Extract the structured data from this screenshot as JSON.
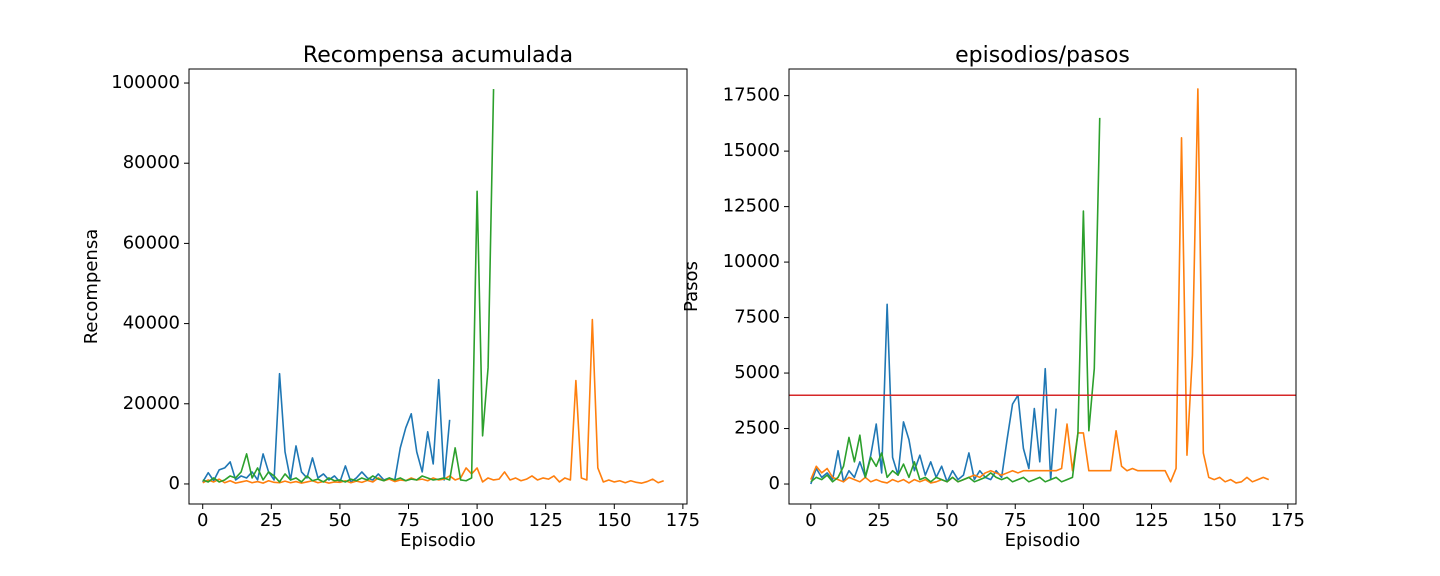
{
  "chart_data": [
    {
      "type": "line",
      "title": "Recompensa acumulada",
      "x_label": "Episodio",
      "y_label": "Recompensa",
      "x": [
        0,
        2,
        4,
        6,
        8,
        10,
        12,
        14,
        16,
        18,
        20,
        22,
        24,
        26,
        28,
        30,
        32,
        34,
        36,
        38,
        40,
        42,
        44,
        46,
        48,
        50,
        52,
        54,
        56,
        58,
        60,
        62,
        64,
        66,
        68,
        70,
        72,
        74,
        76,
        78,
        80,
        82,
        84,
        86,
        88,
        90,
        92,
        94,
        96,
        98,
        100,
        102,
        104,
        106,
        108,
        110,
        112,
        114,
        116,
        118,
        120,
        122,
        124,
        126,
        128,
        130,
        132,
        134,
        136,
        138,
        140,
        142,
        144,
        146,
        148,
        150,
        152,
        154,
        156,
        158,
        160,
        162,
        164,
        166,
        168
      ],
      "series": [
        {
          "color": "#1f77b4",
          "values": [
            500,
            2800,
            800,
            3500,
            4000,
            5500,
            1000,
            2000,
            1500,
            3000,
            1000,
            7500,
            3000,
            1000,
            27500,
            8000,
            1000,
            9500,
            3000,
            1500,
            6500,
            1500,
            2500,
            1000,
            2000,
            500,
            4500,
            500,
            1500,
            3000,
            1500,
            1000,
            2500,
            1000,
            1500,
            1000,
            9000,
            14000,
            17500,
            8000,
            3000,
            13000,
            5000,
            26000,
            1000,
            16000,
            null,
            null,
            null,
            null,
            null,
            null,
            null,
            null,
            null,
            null,
            null,
            null,
            null,
            null,
            null,
            null,
            null,
            null,
            null,
            null,
            null,
            null,
            null,
            null,
            null,
            null,
            null,
            null,
            null,
            null,
            null,
            null,
            null,
            null,
            null,
            null,
            null,
            null,
            null
          ]
        },
        {
          "color": "#ff7f0e",
          "values": [
            300,
            1000,
            500,
            1200,
            300,
            800,
            200,
            500,
            800,
            300,
            600,
            200,
            800,
            400,
            300,
            700,
            300,
            600,
            200,
            500,
            800,
            300,
            600,
            200,
            500,
            400,
            800,
            300,
            700,
            400,
            900,
            500,
            1500,
            800,
            1200,
            600,
            1000,
            800,
            1500,
            1000,
            1200,
            800,
            1500,
            1000,
            1200,
            2000,
            1000,
            1500,
            4000,
            2500,
            4000,
            500,
            1500,
            1000,
            1200,
            3000,
            1000,
            1500,
            800,
            1200,
            2000,
            1000,
            1500,
            1200,
            2000,
            500,
            1500,
            1000,
            25800,
            1500,
            1000,
            41000,
            4000,
            500,
            1000,
            500,
            800,
            300,
            800,
            400,
            200,
            600,
            1200,
            300,
            800
          ]
        },
        {
          "color": "#2ca02c",
          "values": [
            1000,
            500,
            1500,
            500,
            1000,
            2000,
            1500,
            3000,
            7500,
            1500,
            4000,
            1000,
            3000,
            2000,
            500,
            2500,
            1000,
            1500,
            500,
            2000,
            800,
            1200,
            500,
            1500,
            800,
            1000,
            500,
            1200,
            800,
            1500,
            1000,
            2000,
            1200,
            800,
            1500,
            1000,
            1500,
            800,
            1200,
            1000,
            2000,
            1500,
            1000,
            1200,
            1500,
            1000,
            9000,
            1000,
            800,
            1500,
            73000,
            12000,
            29000,
            98500,
            null,
            null,
            null,
            null,
            null,
            null,
            null,
            null,
            null,
            null,
            null,
            null,
            null,
            null,
            null,
            null,
            null,
            null,
            null,
            null,
            null,
            null,
            null,
            null,
            null,
            null,
            null,
            null,
            null,
            null,
            null
          ]
        }
      ],
      "xlim": [
        -5,
        176.5
      ],
      "ylim": [
        -5000,
        103500
      ],
      "xticks": [
        0,
        25,
        50,
        75,
        100,
        125,
        150,
        175
      ],
      "yticks": [
        0,
        20000,
        40000,
        60000,
        80000,
        100000
      ]
    },
    {
      "type": "line",
      "title": "episodios/pasos",
      "x_label": "Episodio",
      "y_label": "Pasos",
      "x": [
        0,
        2,
        4,
        6,
        8,
        10,
        12,
        14,
        16,
        18,
        20,
        22,
        24,
        26,
        28,
        30,
        32,
        34,
        36,
        38,
        40,
        42,
        44,
        46,
        48,
        50,
        52,
        54,
        56,
        58,
        60,
        62,
        64,
        66,
        68,
        70,
        72,
        74,
        76,
        78,
        80,
        82,
        84,
        86,
        88,
        90,
        92,
        94,
        96,
        98,
        100,
        102,
        104,
        106,
        108,
        110,
        112,
        114,
        116,
        118,
        120,
        122,
        124,
        126,
        128,
        130,
        132,
        134,
        136,
        138,
        140,
        142,
        144,
        146,
        148,
        150,
        152,
        154,
        156,
        158,
        160,
        162,
        164,
        166,
        168
      ],
      "series": [
        {
          "color": "#1f77b4",
          "values": [
            0,
            700,
            300,
            500,
            200,
            1500,
            100,
            600,
            300,
            1000,
            300,
            1300,
            2700,
            500,
            8100,
            1200,
            400,
            2800,
            2000,
            600,
            1300,
            400,
            1000,
            300,
            800,
            100,
            600,
            200,
            400,
            1400,
            200,
            600,
            300,
            200,
            600,
            300,
            2000,
            3600,
            4000,
            1600,
            700,
            3400,
            1000,
            5200,
            200,
            3400,
            null,
            null,
            null,
            null,
            null,
            null,
            null,
            null,
            null,
            null,
            null,
            null,
            null,
            null,
            null,
            null,
            null,
            null,
            null,
            null,
            null,
            null,
            null,
            null,
            null,
            null,
            null,
            null,
            null,
            null,
            null,
            null,
            null,
            null,
            null,
            null,
            null,
            null,
            null
          ]
        },
        {
          "color": "#ff7f0e",
          "values": [
            200,
            800,
            500,
            700,
            300,
            200,
            100,
            300,
            200,
            100,
            300,
            100,
            200,
            100,
            50,
            200,
            100,
            200,
            50,
            200,
            100,
            200,
            50,
            100,
            200,
            100,
            300,
            100,
            200,
            300,
            400,
            300,
            500,
            600,
            500,
            400,
            500,
            600,
            500,
            600,
            600,
            600,
            600,
            600,
            600,
            600,
            700,
            2700,
            600,
            2300,
            2300,
            600,
            600,
            600,
            600,
            600,
            2400,
            800,
            600,
            700,
            600,
            600,
            600,
            600,
            600,
            600,
            100,
            700,
            15600,
            1300,
            5800,
            17800,
            1400,
            300,
            200,
            300,
            100,
            200,
            50,
            100,
            300,
            100,
            200,
            300,
            200
          ]
        },
        {
          "color": "#2ca02c",
          "values": [
            100,
            300,
            200,
            400,
            100,
            300,
            800,
            2100,
            1000,
            2200,
            300,
            1200,
            800,
            1400,
            300,
            600,
            400,
            900,
            300,
            1000,
            200,
            300,
            100,
            300,
            200,
            100,
            300,
            100,
            200,
            300,
            100,
            200,
            300,
            500,
            300,
            200,
            300,
            100,
            200,
            300,
            100,
            200,
            300,
            100,
            200,
            300,
            100,
            200,
            300,
            2300,
            12300,
            2400,
            5200,
            16500,
            null,
            null,
            null,
            null,
            null,
            null,
            null,
            null,
            null,
            null,
            null,
            null,
            null,
            null,
            null,
            null,
            null,
            null,
            null,
            null,
            null,
            null,
            null,
            null,
            null,
            null,
            null,
            null,
            null,
            null,
            null
          ]
        }
      ],
      "hlines": [
        {
          "value": 4000,
          "color": "#d62728"
        }
      ],
      "xlim": [
        -8,
        178
      ],
      "ylim": [
        -900,
        18700
      ],
      "xticks": [
        0,
        25,
        50,
        75,
        100,
        125,
        150,
        175
      ],
      "yticks": [
        0,
        2500,
        5000,
        7500,
        10000,
        12500,
        15000,
        17500
      ]
    }
  ]
}
